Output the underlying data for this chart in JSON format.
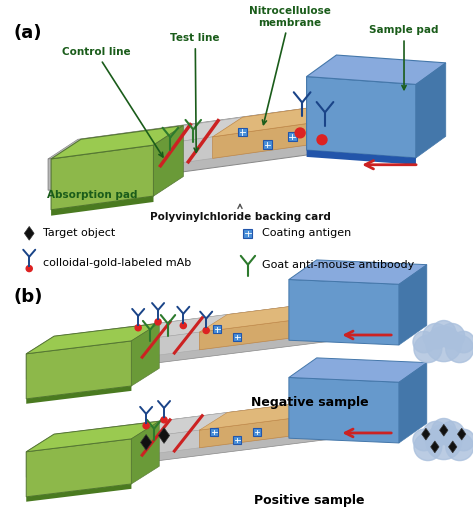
{
  "title_a": "(a)",
  "title_b": "(b)",
  "bg_color": "#ffffff",
  "absorption_pad_color": "#8db84a",
  "absorption_pad_dark": "#6a9a38",
  "absorption_pad_side": "#5a8830",
  "nitro_membrane_color": "#d4a96a",
  "sample_pad_color": "#6699cc",
  "sample_pad_dark": "#4477aa",
  "sample_pad_side": "#3366aa",
  "strip_body_color": "#d0d0d0",
  "strip_dark_color": "#a8a8a8",
  "pvc_color": "#b8b8b8",
  "pvc_dark": "#909090",
  "control_line_color": "#cc2222",
  "green_y_color": "#2d7a2d",
  "blue_body_color": "#1a4488",
  "red_circle_color": "#dd2222",
  "blue_square_color": "#4a90d9",
  "dark_diamond_color": "#111111",
  "arrow_color": "#cc2222",
  "cloud_color": "#aac0dd",
  "negative_label": "Negative sample",
  "positive_label": "Positive sample",
  "label_fontsize": 9,
  "panel_label_fontsize": 13,
  "ann_color": "#1a5c1a",
  "ann_fontsize": 7.5
}
